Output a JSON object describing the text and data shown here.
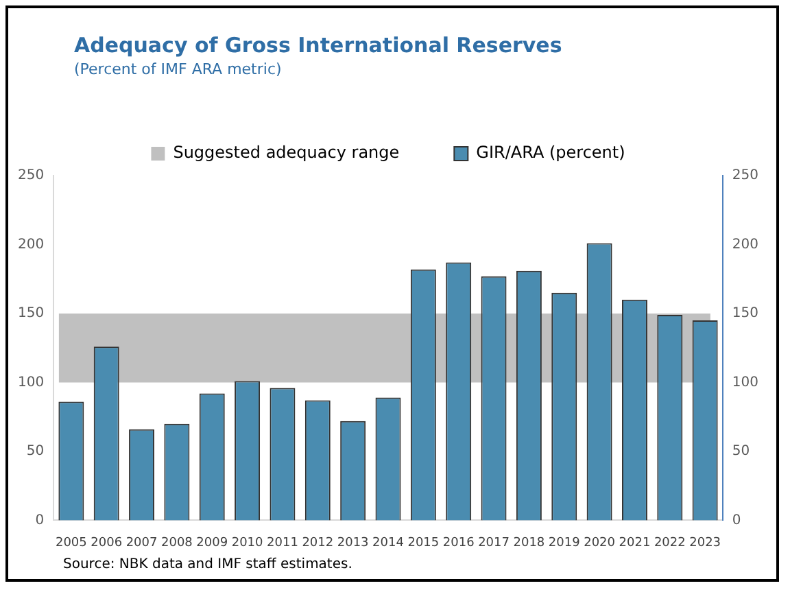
{
  "chart_data": {
    "type": "bar",
    "title": "Adequacy of Gross International Reserves",
    "subtitle": "(Percent of IMF ARA metric)",
    "categories": [
      "2005",
      "2006",
      "2007",
      "2008",
      "2009",
      "2010",
      "2011",
      "2012",
      "2013",
      "2014",
      "2015",
      "2016",
      "2017",
      "2018",
      "2019",
      "2020",
      "2021",
      "2022",
      "2023"
    ],
    "series": [
      {
        "name": "GIR/ARA (percent)",
        "color": "#4a8cb0",
        "values": [
          86,
          126,
          66,
          70,
          92,
          101,
          96,
          87,
          72,
          89,
          182,
          187,
          177,
          181,
          165,
          201,
          160,
          149,
          145
        ]
      }
    ],
    "bands": [
      {
        "axis": "y",
        "from": 100,
        "to": 150,
        "label": "Suggested adequacy range",
        "color": "#c0c0c0"
      }
    ],
    "ylim": [
      0,
      250
    ],
    "yticks": [
      0,
      50,
      100,
      150,
      200,
      250
    ],
    "y2lim": [
      0,
      250
    ],
    "y2ticks": [
      0,
      50,
      100,
      150,
      200,
      250
    ],
    "grid": false,
    "legend": "top",
    "annotations": [
      "Source: NBK data and IMF staff estimates."
    ]
  }
}
